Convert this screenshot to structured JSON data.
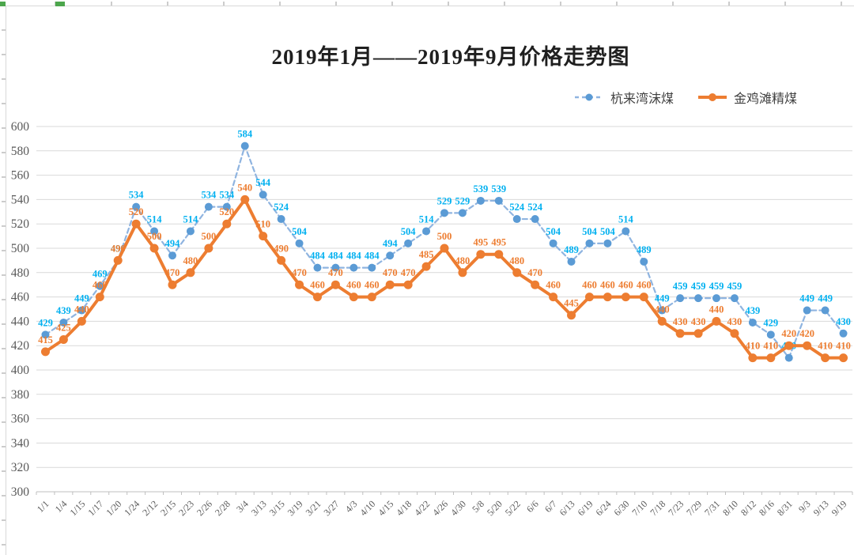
{
  "page": {
    "background": "#ffffff"
  },
  "chart_data": {
    "type": "line",
    "title": "2019年1月——2019年9月价格走势图",
    "categories": [
      "1/1",
      "1/4",
      "1/15",
      "1/17",
      "1/20",
      "1/24",
      "2/12",
      "2/15",
      "2/23",
      "2/26",
      "2/28",
      "3/4",
      "3/13",
      "3/15",
      "3/19",
      "3/21",
      "3/27",
      "4/3",
      "4/10",
      "4/15",
      "4/18",
      "4/22",
      "4/26",
      "4/30",
      "5/8",
      "5/20",
      "5/22",
      "6/6",
      "6/7",
      "6/13",
      "6/19",
      "6/24",
      "6/30",
      "7/10",
      "7/18",
      "7/23",
      "7/29",
      "7/31",
      "8/10",
      "8/12",
      "8/16",
      "8/31",
      "9/3",
      "9/13",
      "9/19"
    ],
    "series": [
      {
        "name": "杭来湾沫煤",
        "style": "dashed",
        "color": "#5B9BD5",
        "line_color": "#8FB4E0",
        "label_color": "#00B0F0",
        "values": [
          429,
          439,
          449,
          469,
          490,
          534,
          514,
          494,
          514,
          534,
          534,
          584,
          544,
          524,
          504,
          484,
          484,
          484,
          484,
          494,
          504,
          514,
          529,
          529,
          539,
          539,
          524,
          524,
          504,
          489,
          504,
          504,
          514,
          489,
          449,
          459,
          459,
          459,
          459,
          439,
          429,
          410,
          449,
          449,
          430
        ]
      },
      {
        "name": "金鸡滩精煤",
        "style": "solid",
        "color": "#ED7D31",
        "line_color": "#ED7D31",
        "label_color": "#ED7D31",
        "values": [
          415,
          425,
          440,
          460,
          490,
          520,
          500,
          470,
          480,
          500,
          520,
          540,
          510,
          490,
          470,
          460,
          470,
          460,
          460,
          470,
          470,
          485,
          500,
          480,
          495,
          495,
          480,
          470,
          460,
          445,
          460,
          460,
          460,
          460,
          440,
          430,
          430,
          440,
          430,
          410,
          410,
          420,
          420,
          410,
          410
        ]
      }
    ],
    "ylim": [
      300,
      600
    ],
    "ytick_step": 20,
    "grid": true,
    "legend_position": "top-right",
    "xlabel": "",
    "ylabel": "",
    "axis_label_color": "#595959",
    "gridline_color": "#D9D9D9",
    "axis_line_color": "#BFBFBF"
  }
}
